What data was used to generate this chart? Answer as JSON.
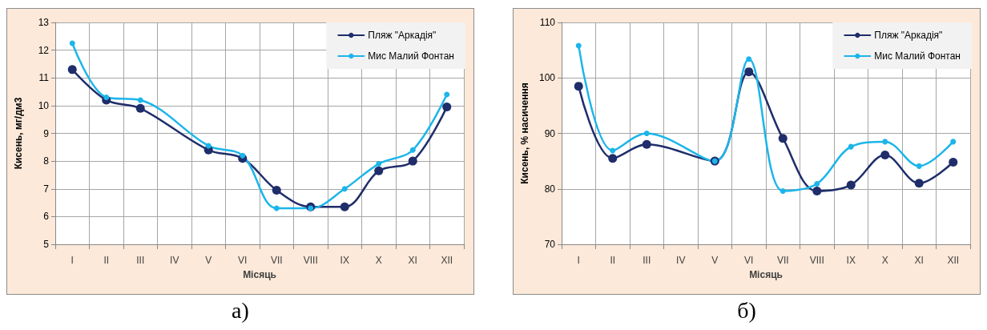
{
  "chart_data": [
    {
      "type": "line",
      "xlabel": "Місяць",
      "ylabel": "Кисень, мг/дм3",
      "annotations": [
        "а)"
      ],
      "categories": [
        "I",
        "II",
        "III",
        "IV",
        "V",
        "VI",
        "VII",
        "VIII",
        "IX",
        "X",
        "XI",
        "XII"
      ],
      "series": [
        {
          "name": "Пляж \"Аркадія\"",
          "color": "#1f2d6b",
          "values": [
            11.3,
            10.2,
            9.9,
            null,
            8.4,
            8.1,
            6.95,
            6.35,
            6.35,
            7.65,
            8.0,
            9.95
          ]
        },
        {
          "name": "Мис Малий Фонтан",
          "color": "#1cb5ea",
          "values": [
            12.25,
            10.3,
            10.2,
            null,
            8.55,
            8.2,
            6.3,
            6.3,
            7.0,
            7.9,
            8.4,
            10.4
          ]
        }
      ],
      "ylim": [
        5,
        13
      ],
      "yticks": [
        5,
        6,
        7,
        8,
        9,
        10,
        11,
        12,
        13
      ],
      "grid": true,
      "legend": "top right",
      "marker": "circle",
      "line_style": "solid"
    },
    {
      "type": "line",
      "xlabel": "Місяць",
      "ylabel": "Кисень, % насичення",
      "annotations": [
        "б)"
      ],
      "categories": [
        "I",
        "II",
        "III",
        "IV",
        "V",
        "VI",
        "VII",
        "VIII",
        "IX",
        "X",
        "XI",
        "XII"
      ],
      "series": [
        {
          "name": "Пляж \"Аркадія\"",
          "color": "#1f2d6b",
          "values": [
            98.5,
            85.5,
            88.0,
            null,
            85.0,
            101.1,
            89.1,
            79.6,
            80.7,
            86.1,
            81.0,
            84.8
          ]
        },
        {
          "name": "Мис Малий Фонтан",
          "color": "#1cb5ea",
          "values": [
            105.8,
            86.9,
            90.0,
            null,
            85.0,
            103.4,
            79.6,
            80.9,
            87.6,
            88.5,
            84.1,
            88.5
          ]
        }
      ],
      "ylim": [
        70,
        110
      ],
      "yticks": [
        70,
        80,
        90,
        100,
        110
      ],
      "grid": true,
      "legend": "top right",
      "marker": "circle",
      "line_style": "solid"
    }
  ]
}
